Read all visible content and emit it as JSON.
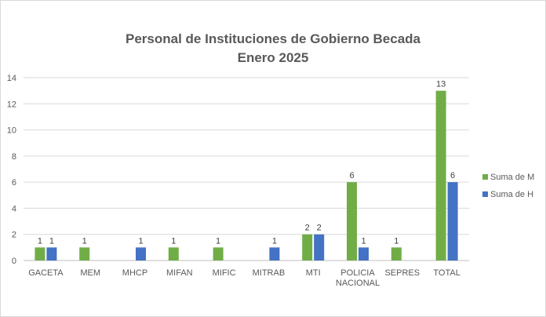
{
  "chart_data": {
    "type": "bar",
    "title": "Personal de Instituciones de Gobierno Becada",
    "subtitle": "Enero 2025",
    "categories": [
      [
        "GACETA"
      ],
      [
        "MEM"
      ],
      [
        "MHCP"
      ],
      [
        "MIFAN"
      ],
      [
        "MIFIC"
      ],
      [
        "MITRAB"
      ],
      [
        "MTI"
      ],
      [
        "POLICIA",
        "NACIONAL"
      ],
      [
        "SEPRES"
      ],
      [
        "TOTAL"
      ]
    ],
    "series": [
      {
        "name": "Suma de M",
        "color": "#70ad47",
        "values": [
          1,
          1,
          null,
          1,
          1,
          null,
          2,
          6,
          1,
          13
        ]
      },
      {
        "name": "Suma de H",
        "color": "#4472c4",
        "values": [
          1,
          null,
          1,
          null,
          null,
          1,
          2,
          1,
          null,
          6
        ]
      }
    ],
    "ylim": [
      0,
      14
    ],
    "yticks": [
      0,
      2,
      4,
      6,
      8,
      10,
      12,
      14
    ],
    "grid": true,
    "legend": "right"
  }
}
